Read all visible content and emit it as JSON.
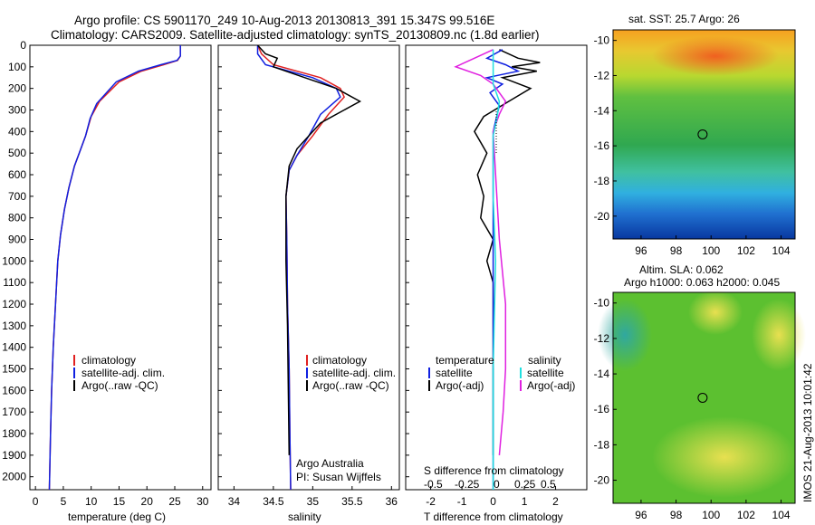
{
  "header": {
    "title_line1": "Argo profile: CS 5901170_249 10-Aug-2013 20130813_391 15.347S 99.516E",
    "title_line2": "Climatology: CARS2009. Satellite-adjusted climatology: synTS_20130809.nc (1.8d earlier)"
  },
  "colors": {
    "climatology": "#e02020",
    "satellite": "#1020e0",
    "argo": "#000000",
    "sal_satellite": "#20e0e0",
    "sal_argo": "#e020e0"
  },
  "depth_axis": {
    "min": 0,
    "max": 2060,
    "ticks": [
      0,
      100,
      200,
      300,
      400,
      500,
      600,
      700,
      800,
      900,
      1000,
      1100,
      1200,
      1300,
      1400,
      1500,
      1600,
      1700,
      1800,
      1900,
      2000
    ]
  },
  "temperature_panel": {
    "xlabel": "temperature (deg C)",
    "xlim": [
      -1,
      31.5
    ],
    "xticks": [
      0,
      5,
      10,
      15,
      20,
      25,
      30
    ],
    "legend": [
      "climatology",
      "satellite-adj. clim.",
      "Argo(..raw -QC)"
    ],
    "series": {
      "climatology": [
        [
          26,
          0
        ],
        [
          26,
          50
        ],
        [
          25.5,
          70
        ],
        [
          23,
          90
        ],
        [
          19,
          120
        ],
        [
          15,
          170
        ],
        [
          11.5,
          260
        ],
        [
          10,
          330
        ],
        [
          9,
          420
        ],
        [
          8,
          490
        ],
        [
          7,
          560
        ],
        [
          6,
          660
        ],
        [
          5.2,
          760
        ],
        [
          4.5,
          880
        ],
        [
          4,
          1000
        ],
        [
          3.6,
          1200
        ],
        [
          3.2,
          1400
        ],
        [
          2.9,
          1600
        ],
        [
          2.7,
          1800
        ],
        [
          2.5,
          2060
        ]
      ],
      "satellite": [
        [
          26,
          0
        ],
        [
          26,
          50
        ],
        [
          25.4,
          70
        ],
        [
          22.5,
          90
        ],
        [
          18.5,
          120
        ],
        [
          14.5,
          170
        ],
        [
          11,
          270
        ],
        [
          9.8,
          340
        ],
        [
          9,
          420
        ],
        [
          8,
          490
        ],
        [
          7,
          560
        ],
        [
          6,
          660
        ],
        [
          5.2,
          760
        ],
        [
          4.5,
          880
        ],
        [
          4,
          1000
        ],
        [
          3.6,
          1200
        ],
        [
          3.2,
          1400
        ],
        [
          2.9,
          1600
        ],
        [
          2.7,
          1800
        ],
        [
          2.5,
          2060
        ]
      ]
    }
  },
  "salinity_panel": {
    "xlabel": "salinity",
    "xlim": [
      33.8,
      36.1
    ],
    "xticks": [
      34,
      34.5,
      35,
      35.5,
      36
    ],
    "legend": [
      "climatology",
      "satellite-adj. clim.",
      "Argo(..raw -QC)"
    ],
    "note1": "Argo Australia",
    "note2": "PI: Susan Wijffels",
    "series": {
      "climatology": [
        [
          34.3,
          0
        ],
        [
          34.35,
          40
        ],
        [
          34.5,
          90
        ],
        [
          35.1,
          150
        ],
        [
          35.35,
          200
        ],
        [
          35.4,
          240
        ],
        [
          35.2,
          320
        ],
        [
          35.0,
          420
        ],
        [
          34.8,
          510
        ],
        [
          34.7,
          580
        ],
        [
          34.66,
          700
        ],
        [
          34.67,
          900
        ],
        [
          34.68,
          1200
        ],
        [
          34.7,
          1500
        ],
        [
          34.71,
          1800
        ],
        [
          34.72,
          2060
        ]
      ],
      "satellite": [
        [
          34.3,
          0
        ],
        [
          34.3,
          40
        ],
        [
          34.4,
          90
        ],
        [
          35.0,
          150
        ],
        [
          35.3,
          200
        ],
        [
          35.35,
          240
        ],
        [
          35.1,
          320
        ],
        [
          34.95,
          420
        ],
        [
          34.8,
          510
        ],
        [
          34.7,
          580
        ],
        [
          34.66,
          700
        ],
        [
          34.67,
          900
        ],
        [
          34.68,
          1200
        ],
        [
          34.7,
          1500
        ],
        [
          34.71,
          1800
        ],
        [
          34.72,
          2060
        ]
      ],
      "argo": [
        [
          34.3,
          0
        ],
        [
          34.4,
          40
        ],
        [
          34.55,
          60
        ],
        [
          34.5,
          100
        ],
        [
          34.9,
          150
        ],
        [
          35.3,
          200
        ],
        [
          35.6,
          260
        ],
        [
          35.4,
          300
        ],
        [
          35.1,
          360
        ],
        [
          34.95,
          420
        ],
        [
          34.8,
          480
        ],
        [
          34.7,
          560
        ],
        [
          34.66,
          700
        ],
        [
          34.66,
          1000
        ],
        [
          34.68,
          1300
        ],
        [
          34.69,
          1600
        ],
        [
          34.7,
          1900
        ]
      ]
    }
  },
  "difference_panel": {
    "xlabel": "T difference from climatology",
    "toplabel": "S difference from climatology",
    "xlim": [
      -2.8,
      3.0
    ],
    "xticks": [
      -2,
      -1,
      0,
      1,
      2
    ],
    "xtick_labels": [
      "-2",
      "-1",
      "0",
      "1",
      "2"
    ],
    "sticks": [
      "-0.5",
      "-0.25",
      "0",
      "0.25",
      "0.5"
    ],
    "legend_left_title": "temperature",
    "legend_right_title": "salinity",
    "legend_left": [
      "satellite",
      "Argo(-adj)"
    ],
    "legend_right": [
      "satellite",
      "Argo(-adj)"
    ],
    "series": {
      "temp_satellite": [
        [
          0.3,
          20
        ],
        [
          -0.2,
          60
        ],
        [
          0.4,
          90
        ],
        [
          0.8,
          120
        ],
        [
          -0.2,
          150
        ],
        [
          0.3,
          180
        ],
        [
          -0.1,
          220
        ],
        [
          0.2,
          280
        ],
        [
          0,
          400
        ],
        [
          0,
          800
        ],
        [
          0,
          1400
        ],
        [
          0,
          2060
        ]
      ],
      "temp_argo": [
        [
          0.2,
          20
        ],
        [
          0.8,
          60
        ],
        [
          1.5,
          80
        ],
        [
          0.6,
          100
        ],
        [
          1.4,
          120
        ],
        [
          0.3,
          150
        ],
        [
          1.2,
          200
        ],
        [
          0.5,
          260
        ],
        [
          -0.3,
          330
        ],
        [
          -0.6,
          400
        ],
        [
          -0.2,
          500
        ],
        [
          -0.5,
          600
        ],
        [
          -0.3,
          700
        ],
        [
          -0.4,
          800
        ],
        [
          0,
          900
        ],
        [
          -0.2,
          1000
        ],
        [
          0,
          1100
        ],
        [
          0,
          1500
        ],
        [
          0,
          1900
        ]
      ],
      "sal_satellite": [
        [
          0,
          20
        ],
        [
          0,
          60
        ],
        [
          0,
          100
        ],
        [
          0,
          140
        ],
        [
          0,
          180
        ],
        [
          0.05,
          260
        ],
        [
          0.03,
          340
        ],
        [
          0,
          420
        ],
        [
          0,
          700
        ],
        [
          0.02,
          1000
        ],
        [
          0,
          1500
        ],
        [
          0,
          2060
        ]
      ],
      "sal_argo": [
        [
          0,
          20
        ],
        [
          -0.15,
          60
        ],
        [
          -0.3,
          100
        ],
        [
          -0.1,
          140
        ],
        [
          0,
          180
        ],
        [
          0.1,
          260
        ],
        [
          0.05,
          320
        ],
        [
          0,
          400
        ],
        [
          0.02,
          600
        ],
        [
          0.05,
          900
        ],
        [
          0.1,
          1200
        ],
        [
          0.1,
          1500
        ],
        [
          0.08,
          1700
        ],
        [
          0.05,
          1900
        ]
      ]
    }
  },
  "sst_map": {
    "title": "sat. SST: 25.7 Argo: 26",
    "xticks": [
      96,
      98,
      100,
      102,
      104
    ],
    "yticks": [
      -10,
      -12,
      -14,
      -16,
      -18,
      -20
    ],
    "lon_range": [
      94.4,
      104.8
    ],
    "lat_range": [
      -21.3,
      -9.4
    ],
    "marker": {
      "lon": 99.516,
      "lat": -15.347
    }
  },
  "sla_map": {
    "title1": "Altim. SLA: 0.062",
    "title2": "Argo h1000: 0.063 h2000: 0.045",
    "xticks": [
      96,
      98,
      100,
      102,
      104
    ],
    "yticks": [
      -10,
      -12,
      -14,
      -16,
      -18,
      -20
    ],
    "lon_range": [
      94.4,
      104.8
    ],
    "lat_range": [
      -21.3,
      -9.4
    ],
    "marker": {
      "lon": 99.516,
      "lat": -15.347
    }
  },
  "footer_stamp": "IMOS 21-Aug-2013 10:01:42"
}
